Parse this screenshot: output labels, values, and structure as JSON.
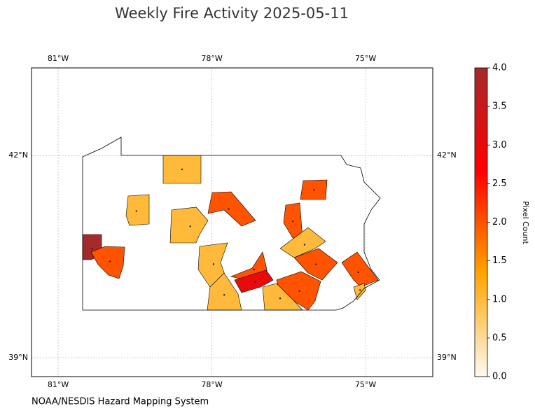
{
  "chart_data": {
    "type": "map",
    "title": "Weekly Fire Activity 2025-05-11",
    "xlim": [
      -81.52,
      -73.69
    ],
    "ylim": [
      38.72,
      43.3
    ],
    "xticks": [
      {
        "value": -81,
        "label": "81°W"
      },
      {
        "value": -78,
        "label": "78°W"
      },
      {
        "value": -75,
        "label": "75°W"
      }
    ],
    "yticks": [
      {
        "value": 39,
        "label": "39°N"
      },
      {
        "value": 42,
        "label": "42°N"
      }
    ],
    "grid": true,
    "colorbar": {
      "label": "Pixel Count",
      "lim": [
        0,
        4
      ],
      "colors": [
        "#fffaf0",
        "#ffa500",
        "#ff0000",
        "#a52a2a"
      ],
      "ticks": [
        {
          "value": 0,
          "label": "0.0"
        },
        {
          "value": 0.5,
          "label": "0.5"
        },
        {
          "value": 1,
          "label": "1.0"
        },
        {
          "value": 1.5,
          "label": "1.5"
        },
        {
          "value": 2,
          "label": "2.0"
        },
        {
          "value": 2.5,
          "label": "2.5"
        },
        {
          "value": 3,
          "label": "3.0"
        },
        {
          "value": 3.5,
          "label": "3.5"
        },
        {
          "value": 4,
          "label": "4.0"
        }
      ]
    },
    "regions": {
      "values": [
        1,
        2,
        1,
        2,
        2,
        1,
        4,
        2,
        1,
        1,
        2,
        2,
        2,
        3,
        2,
        1,
        1,
        1
      ]
    },
    "source": "NOAA/NESDIS Hazard Mapping System"
  }
}
